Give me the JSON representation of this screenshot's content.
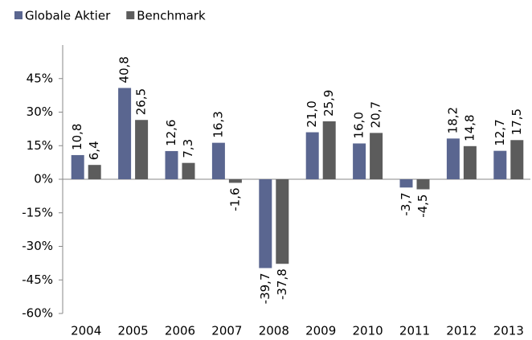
{
  "chart_data": {
    "type": "bar",
    "categories": [
      "2004",
      "2005",
      "2006",
      "2007",
      "2008",
      "2009",
      "2010",
      "2011",
      "2012",
      "2013"
    ],
    "series": [
      {
        "name": "Globale Aktier",
        "color": "#5a6690",
        "values": [
          10.8,
          40.8,
          12.6,
          16.3,
          -39.7,
          21.0,
          16.0,
          -3.7,
          18.2,
          12.7
        ],
        "value_labels": [
          "10,8",
          "40,8",
          "12,6",
          "16,3",
          "-39,7",
          "21,0",
          "16,0",
          "-3,7",
          "18,2",
          "12,7"
        ]
      },
      {
        "name": "Benchmark",
        "color": "#5c5c5c",
        "values": [
          6.4,
          26.5,
          7.3,
          -1.6,
          -37.8,
          25.9,
          20.7,
          -4.5,
          14.8,
          17.5
        ],
        "value_labels": [
          "6,4",
          "26,5",
          "7,3",
          "-1,6",
          "-37,8",
          "25,9",
          "20,7",
          "-4,5",
          "14,8",
          "17,5"
        ]
      }
    ],
    "ylim": [
      -60,
      60
    ],
    "yticks": [
      {
        "value": -60,
        "label": "-60%"
      },
      {
        "value": -45,
        "label": "-45%"
      },
      {
        "value": -30,
        "label": "-30%"
      },
      {
        "value": -15,
        "label": "-15%"
      },
      {
        "value": 0,
        "label": "0%"
      },
      {
        "value": 15,
        "label": "15%"
      },
      {
        "value": 30,
        "label": "30%"
      },
      {
        "value": 45,
        "label": "45%"
      }
    ],
    "grid": false,
    "legend": "top-left"
  }
}
